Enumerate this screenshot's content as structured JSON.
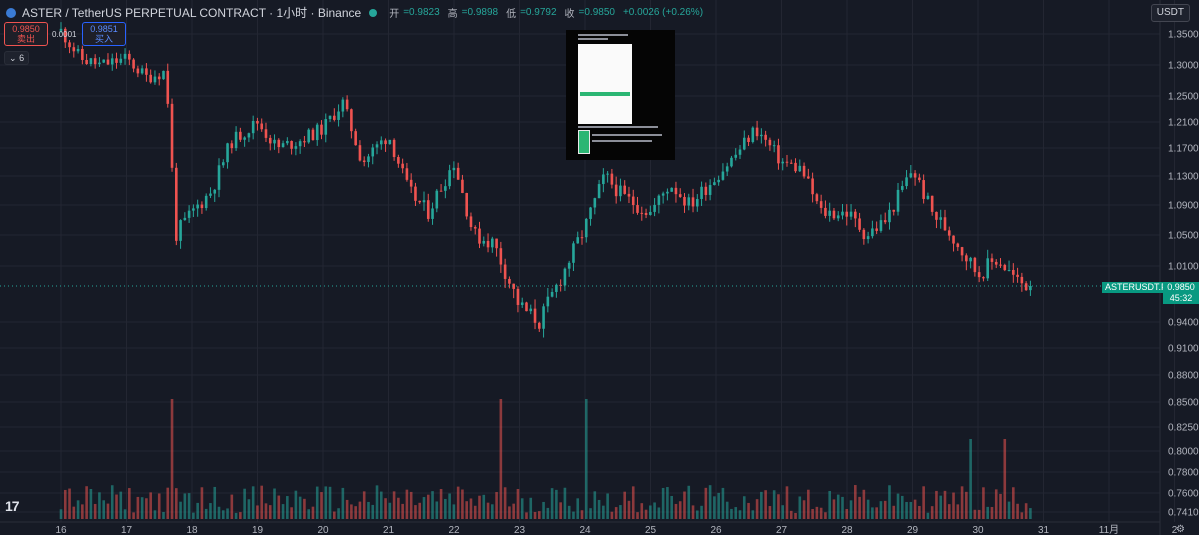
{
  "header": {
    "symbol": "ASTER / TetherUS PERPETUAL CONTRACT · 1小时 · Binance",
    "open_label": "开",
    "open": "=0.9823",
    "high_label": "高",
    "high": "=0.9898",
    "low_label": "低",
    "low": "=0.9792",
    "close_label": "收",
    "close": "=0.9850",
    "change": "+0.0026 (+0.26%)"
  },
  "trade": {
    "sell_price": "0.9850",
    "sell_label": "卖出",
    "spread": "0.0001",
    "buy_price": "0.9851",
    "buy_label": "买入"
  },
  "indicators_toggle": "6",
  "currency_button": "USDT",
  "price_tag": {
    "symbol": "ASTERUSDT.P",
    "price": "0.9850",
    "countdown": "45:32"
  },
  "colors": {
    "up": "#26a69a",
    "down": "#ef5350",
    "background": "#161a25",
    "grid": "#232632"
  },
  "chart_data": {
    "type": "candlestick",
    "symbol": "ASTERUSDT.P",
    "interval": "1小时",
    "ylim": [
      0.741,
      1.355
    ],
    "y_ticks": [
      "1.3500",
      "1.3000",
      "1.2500",
      "1.2100",
      "1.1700",
      "1.1300",
      "1.0900",
      "1.0500",
      "1.0100",
      "0.9400",
      "0.9100",
      "0.8800",
      "0.8500",
      "0.8250",
      "0.8000",
      "0.7800",
      "0.7600",
      "0.7410"
    ],
    "x_ticks": [
      "16",
      "17",
      "18",
      "19",
      "20",
      "21",
      "22",
      "23",
      "24",
      "25",
      "26",
      "27",
      "28",
      "29",
      "30",
      "31",
      "11月",
      "2"
    ],
    "price_path_days": [
      16,
      16.3,
      16.6,
      17.0,
      17.3,
      17.6,
      17.75,
      18.0,
      18.3,
      18.6,
      19.0,
      19.3,
      19.6,
      20.0,
      20.3,
      20.6,
      21.0,
      21.3,
      21.6,
      22.0,
      22.3,
      22.6,
      23.0,
      23.3,
      23.6,
      24.0,
      24.3,
      24.6,
      25.0,
      25.3,
      25.6,
      26.0,
      26.3,
      26.6,
      27.0,
      27.3,
      27.6,
      28.0,
      28.3,
      28.6,
      29.0,
      29.3,
      29.6,
      30.0,
      30.3,
      30.6,
      30.8
    ],
    "price_path_values": [
      1.355,
      1.31,
      1.3,
      1.31,
      1.28,
      1.29,
      1.05,
      1.08,
      1.11,
      1.18,
      1.21,
      1.17,
      1.18,
      1.2,
      1.24,
      1.15,
      1.19,
      1.11,
      1.08,
      1.15,
      1.05,
      1.04,
      0.96,
      0.94,
      0.99,
      1.06,
      1.13,
      1.1,
      1.08,
      1.12,
      1.09,
      1.13,
      1.16,
      1.2,
      1.15,
      1.14,
      1.08,
      1.08,
      1.05,
      1.07,
      1.14,
      1.08,
      1.05,
      1.0,
      1.02,
      0.99,
      0.985
    ],
    "last_close": 0.985,
    "volume_peaks": [
      {
        "day": 17.7,
        "color": "red",
        "level": "high"
      },
      {
        "day": 24.0,
        "color": "green",
        "level": "high"
      },
      {
        "day": 22.7,
        "color": "red",
        "level": "high"
      },
      {
        "day": 29.9,
        "color": "red",
        "level": "medium"
      },
      {
        "day": 30.4,
        "color": "red",
        "level": "medium"
      }
    ]
  }
}
